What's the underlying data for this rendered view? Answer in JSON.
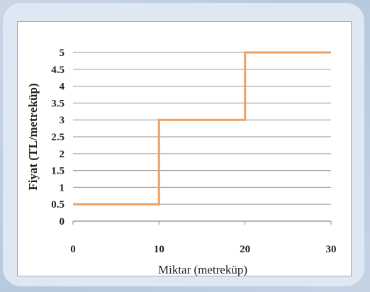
{
  "chart_data": {
    "type": "line",
    "step": true,
    "title": "",
    "xlabel": "Miktar  (metreküp)",
    "ylabel": "Fiyat (TL/metreküp)",
    "xlim": [
      0,
      30
    ],
    "ylim": [
      0,
      5
    ],
    "x_ticks": [
      "0",
      "10",
      "20",
      "30"
    ],
    "y_ticks": [
      "0",
      "0.5",
      "1",
      "1.5",
      "2",
      "2.5",
      "3",
      "3.5",
      "4",
      "4.5",
      "5"
    ],
    "grid": true,
    "color": "#f0a060",
    "series": [
      {
        "x": [
          0,
          10,
          10,
          20,
          20,
          30
        ],
        "y": [
          0.5,
          0.5,
          3,
          3,
          5,
          5
        ]
      }
    ]
  }
}
